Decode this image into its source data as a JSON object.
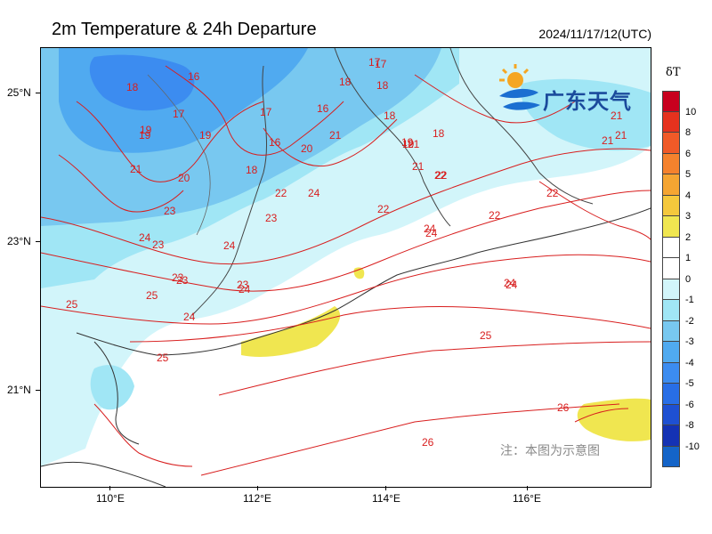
{
  "title": "2m Temperature & 24h Departure",
  "timestamp": "2024/11/17/12(UTC)",
  "lat_labels": [
    "25°N",
    "23°N",
    "21°N"
  ],
  "lon_labels": [
    "110°E",
    "112°E",
    "114°E",
    "116°E"
  ],
  "legend": {
    "title": "δT",
    "labels": [
      "10",
      "8",
      "6",
      "5",
      "4",
      "3",
      "2",
      "1",
      "0",
      "-1",
      "-2",
      "-3",
      "-4",
      "-5",
      "-6",
      "-8",
      "-10"
    ],
    "colors": [
      "#c8001e",
      "#e6321e",
      "#f05a28",
      "#f5822d",
      "#f5a532",
      "#f5c83c",
      "#f0e650",
      "#ffffff",
      "#ffffff",
      "#d2f5fa",
      "#a0e6f5",
      "#78c8f0",
      "#50aaf0",
      "#3c8cf0",
      "#286ee6",
      "#1e50d2",
      "#1432b4",
      "#1464c8"
    ]
  },
  "logo_text": "广东天气",
  "note": "注：本图为示意图",
  "contour_labels": [
    "17",
    "18",
    "18",
    "16",
    "17",
    "19",
    "19",
    "17",
    "18",
    "18",
    "19",
    "16",
    "16",
    "17",
    "18",
    "18",
    "21",
    "20",
    "19",
    "19",
    "20",
    "21",
    "21",
    "22",
    "22",
    "24",
    "23",
    "22",
    "24",
    "23",
    "24",
    "24",
    "23",
    "22",
    "22",
    "23",
    "22",
    "23",
    "24",
    "21",
    "21",
    "24",
    "25",
    "23",
    "24",
    "24",
    "25",
    "25",
    "24",
    "25",
    "26",
    "26",
    "21",
    "21"
  ]
}
